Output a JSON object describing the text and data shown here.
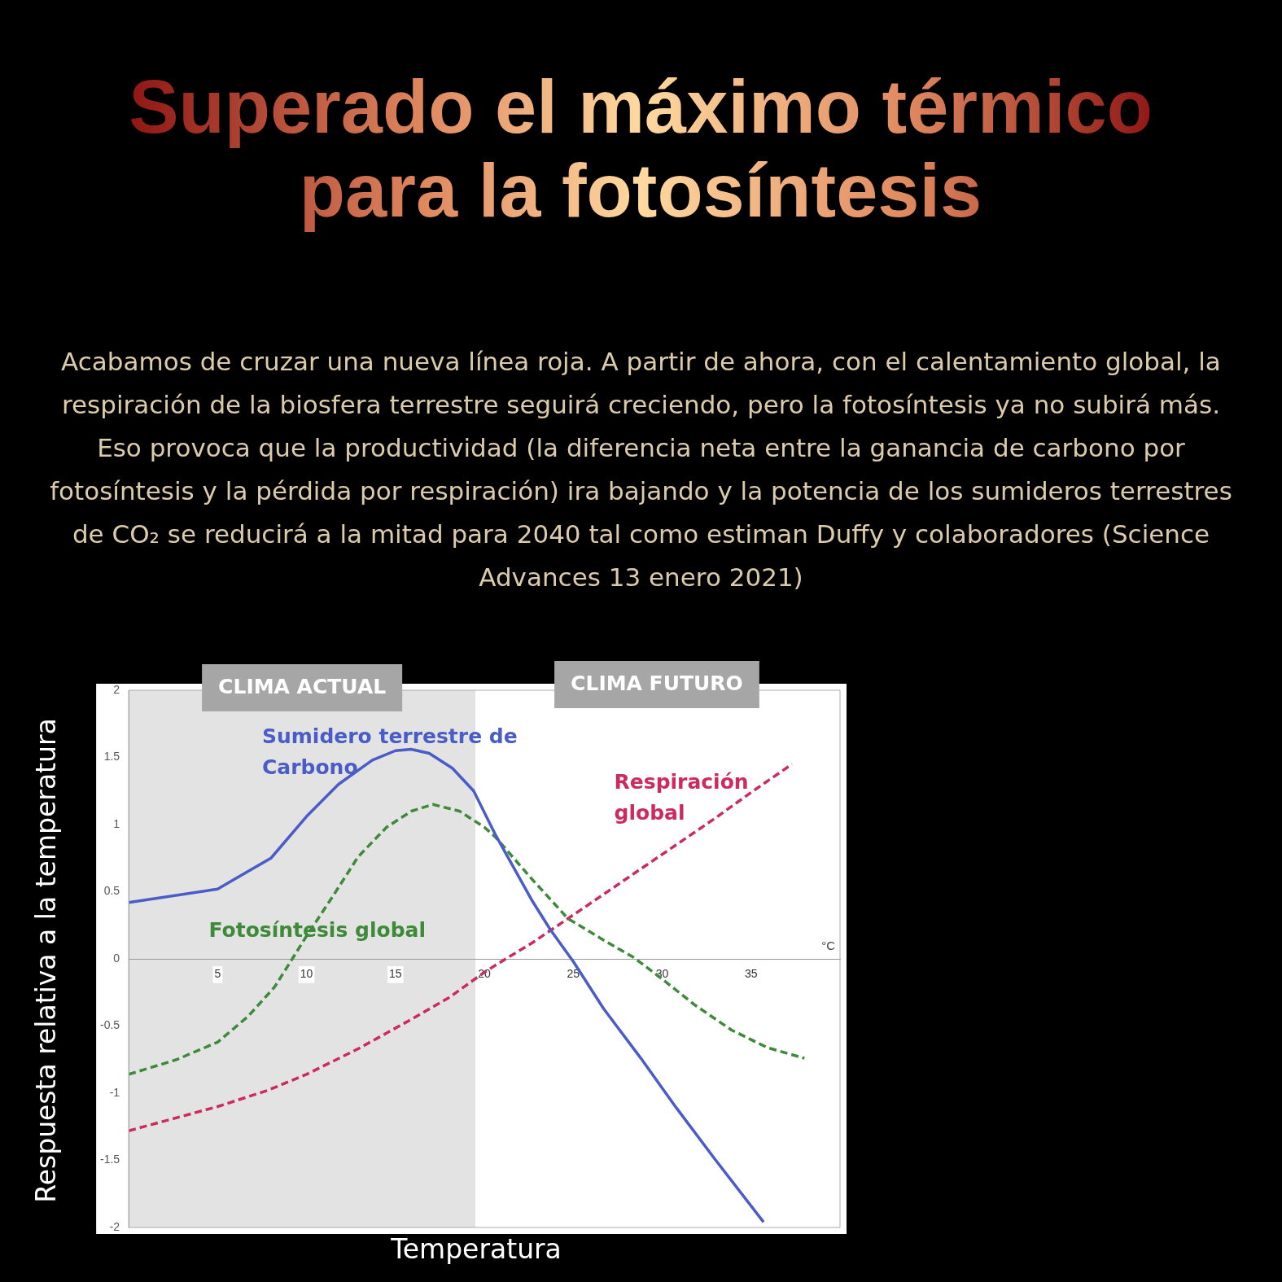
{
  "chart_data": {
    "type": "line",
    "title": "Superado el máximo térmico para la fotosíntesis",
    "subtitle": "Acabamos de cruzar una nueva línea roja. A partir de ahora, con el calentamiento global, la respiración de la biosfera terrestre seguirá creciendo, pero la fotosíntesis ya no subirá más. Eso provoca que la productividad (la diferencia neta entre la ganancia de carbono por fotosíntesis y la pérdida por respiración) ira bajando y la potencia de los sumideros terrestres de CO₂ se reducirá a la mitad para 2040 tal como estiman Duffy y colaboradores (Science Advances 13 enero 2021)",
    "xlabel": "Temperatura",
    "ylabel": "Respuesta relativa a la temperatura",
    "annotations": [
      "CLIMA FUTURO",
      "°C"
    ],
    "xlim": [
      0,
      40
    ],
    "xticks": [
      5,
      10,
      15,
      20,
      25,
      30,
      35
    ],
    "ylim": [
      -2,
      2
    ],
    "yticks": [
      -2,
      -1.5,
      -1,
      -0.5,
      0,
      0.5,
      1,
      1.5,
      2
    ],
    "grid": false,
    "legend": false,
    "marker": "none",
    "bands": [
      {
        "axis": "x",
        "from": 0,
        "to": 19.5,
        "label": "CLIMA ACTUAL",
        "color": "#e3e3e3"
      }
    ],
    "series": [
      {
        "name": "Sumidero terrestre de Carbono",
        "color": "#4a5cc6",
        "line_style": "solid",
        "x": [
          0,
          5,
          5.9,
          8,
          10,
          11.8,
          13.7,
          15,
          15.9,
          16.9,
          18.2,
          19.4,
          20.6,
          22.7,
          23.7,
          25,
          26.7,
          28.8,
          30.8,
          32.9,
          35.7
        ],
        "values": [
          0.42,
          0.52,
          0.59,
          0.75,
          1.06,
          1.3,
          1.48,
          1.55,
          1.56,
          1.53,
          1.42,
          1.25,
          0.93,
          0.43,
          0.22,
          -0.02,
          -0.37,
          -0.74,
          -1.11,
          -1.48,
          -1.96
        ]
      },
      {
        "name": "Fotosíntesis global",
        "color": "#3e8a3a",
        "line_style": "dashed",
        "x": [
          0,
          2.7,
          5,
          6.7,
          8.2,
          9.2,
          10,
          11.4,
          12.9,
          14.5,
          15.9,
          17.1,
          18.6,
          20,
          20.6,
          22.7,
          24.7,
          26.7,
          28.4,
          30,
          31.8,
          33.9,
          35.9,
          38
        ],
        "values": [
          -0.86,
          -0.75,
          -0.62,
          -0.43,
          -0.21,
          0,
          0.17,
          0.45,
          0.76,
          0.98,
          1.1,
          1.15,
          1.1,
          0.98,
          0.91,
          0.59,
          0.3,
          0.14,
          0.01,
          -0.15,
          -0.34,
          -0.53,
          -0.66,
          -0.74
        ]
      },
      {
        "name": "Respiración global",
        "color": "#cc2b5e",
        "line_style": "dashed",
        "x": [
          0,
          5,
          7.8,
          10,
          12.9,
          15.9,
          18,
          20,
          21.2,
          22.7,
          24.7,
          26.7,
          28.8,
          30.8,
          32.9,
          34.9,
          37.3
        ],
        "values": [
          -1.28,
          -1.1,
          -0.98,
          -0.86,
          -0.67,
          -0.45,
          -0.29,
          -0.1,
          0,
          0.12,
          0.3,
          0.48,
          0.67,
          0.85,
          1.04,
          1.23,
          1.45
        ]
      }
    ]
  }
}
